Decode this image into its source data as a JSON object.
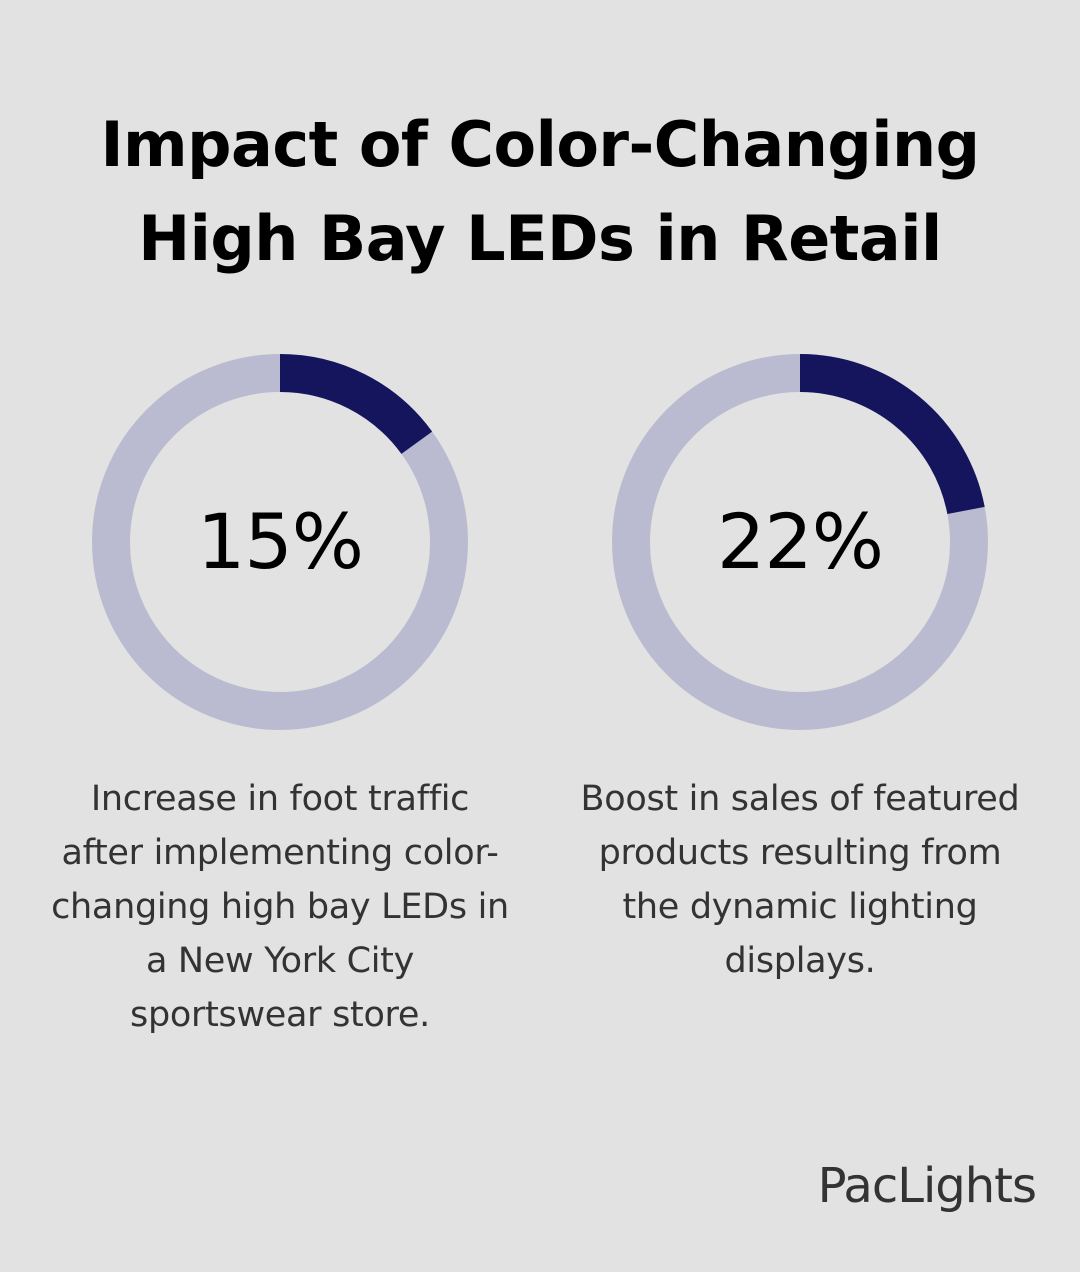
{
  "background_color": "#e1e2e1",
  "title_lines": [
    "Impact of Color-Changing",
    "High Bay LEDs in Retail"
  ],
  "chart_data": [
    {
      "type": "pie",
      "style": "donut",
      "value": 15,
      "label": "15%",
      "colors": {
        "filled": "#15155e",
        "track": "#babbd1"
      },
      "caption_lines": [
        "Increase in foot traffic",
        "after implementing color-",
        "changing high bay LEDs in",
        "a New York City",
        "sportswear store."
      ]
    },
    {
      "type": "pie",
      "style": "donut",
      "value": 22,
      "label": "22%",
      "colors": {
        "filled": "#15155e",
        "track": "#babbd1"
      },
      "caption_lines": [
        "Boost in sales of featured",
        "products resulting from",
        "the dynamic lighting",
        "displays."
      ]
    }
  ],
  "logo": {
    "text": "PacLights"
  }
}
